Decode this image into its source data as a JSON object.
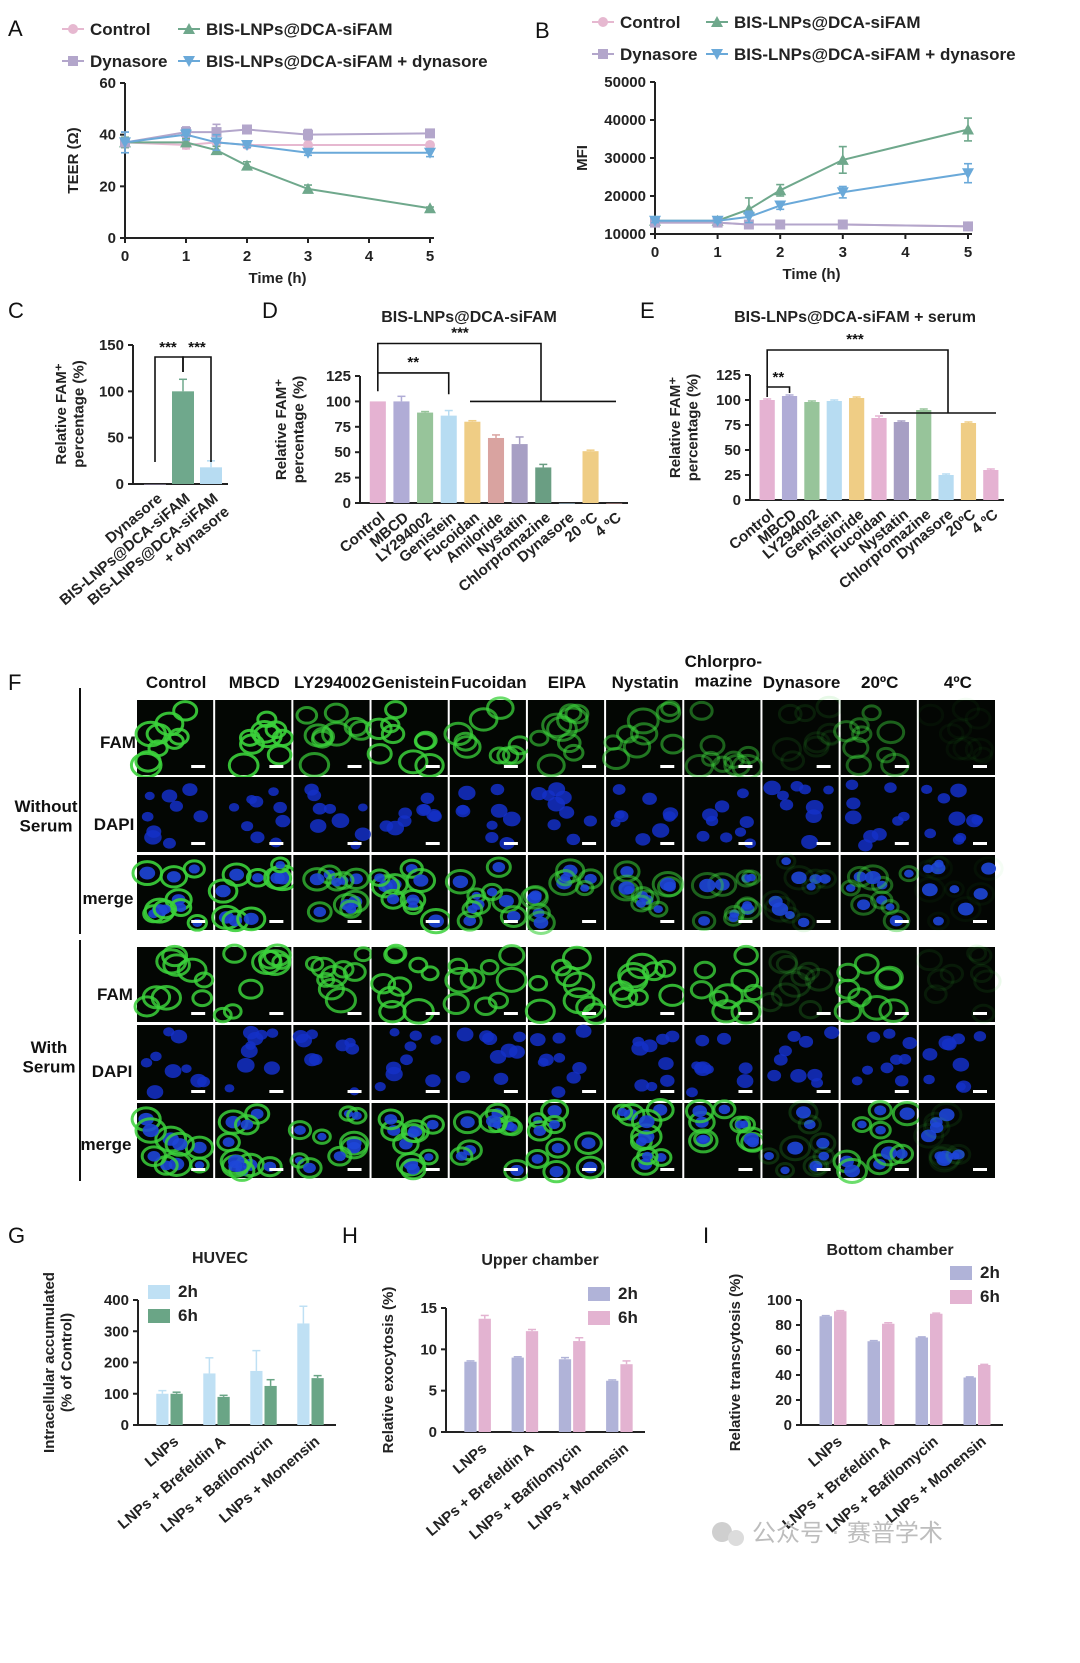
{
  "panels": {
    "A": {
      "letter": "A"
    },
    "B": {
      "letter": "B"
    },
    "C": {
      "letter": "C"
    },
    "D": {
      "letter": "D"
    },
    "E": {
      "letter": "E"
    },
    "F": {
      "letter": "F"
    },
    "G": {
      "letter": "G"
    },
    "H": {
      "letter": "H"
    },
    "I": {
      "letter": "I"
    }
  },
  "colors": {
    "control": "#e6b8d0",
    "bis": "#6fa88c",
    "dynasore": "#b3a6cb",
    "bis_dyn": "#6aa9d9",
    "pink": "#e5b2d2",
    "purple": "#b0acd6",
    "green": "#97c49a",
    "lightblue": "#b7dcf2",
    "yellow": "#efcd85",
    "salmon": "#d9a3a0",
    "mauve": "#a79fc4",
    "dgreen": "#6a9e83",
    "g_2h": "#bfe0f4",
    "g_6h": "#6aa586",
    "h_2h": "#b0b3d8",
    "h_6h": "#e3b3d1"
  },
  "legendAB": [
    "Control",
    "BIS-LNPs@DCA-siFAM",
    "Dynasore",
    "BIS-LNPs@DCA-siFAM + dynasore"
  ],
  "micrograph": {
    "columns": [
      "Control",
      "MBCD",
      "LY294002",
      "Genistein",
      "Fucoidan",
      "EIPA",
      "Nystatin",
      "Chlorpro-\nmazine",
      "Dynasore",
      "20ºC",
      "4ºC"
    ],
    "groups": [
      "Without\nSerum",
      "With\nSerum"
    ],
    "rows": [
      "FAM",
      "DAPI",
      "merge"
    ],
    "fam_intensity_without": [
      0.9,
      0.9,
      0.7,
      0.85,
      0.75,
      0.6,
      0.55,
      0.45,
      0.12,
      0.45,
      0.05
    ],
    "fam_intensity_with": [
      0.85,
      0.85,
      0.8,
      0.85,
      0.8,
      0.85,
      0.85,
      0.8,
      0.2,
      0.75,
      0.1
    ]
  },
  "watermark": "公众号 · 赛普学术",
  "chart_data": [
    {
      "panel": "A",
      "type": "line",
      "xlabel": "Time (h)",
      "ylabel": "TEER (Ω)",
      "xlim": [
        0,
        5
      ],
      "ylim": [
        0,
        60
      ],
      "xticks": [
        0,
        1,
        2,
        3,
        4,
        5
      ],
      "yticks": [
        0,
        20,
        40,
        60
      ],
      "legend": "top",
      "series": [
        {
          "name": "Control",
          "color": "control",
          "marker": "circle",
          "x": [
            0,
            1,
            1.5,
            2,
            3,
            5
          ],
          "y": [
            37,
            36,
            37,
            36,
            36,
            36
          ],
          "err": [
            2,
            1.5,
            1.5,
            1,
            1,
            1
          ]
        },
        {
          "name": "BIS-LNPs@DCA-siFAM",
          "color": "bis",
          "marker": "tri-up",
          "x": [
            0,
            1,
            1.5,
            2,
            3,
            5
          ],
          "y": [
            37,
            37,
            34,
            28,
            19,
            11.5
          ],
          "err": [
            2,
            1.5,
            1.5,
            1.5,
            1.5,
            0.5
          ]
        },
        {
          "name": "Dynasore",
          "color": "dynasore",
          "marker": "square",
          "x": [
            0,
            1,
            1.5,
            2,
            3,
            5
          ],
          "y": [
            37,
            41,
            41,
            42,
            40,
            40.5
          ],
          "err": [
            4,
            2,
            3,
            1.5,
            2,
            1
          ]
        },
        {
          "name": "BIS-LNPs@DCA-siFAM + dynasore",
          "color": "bis_dyn",
          "marker": "tri-down",
          "x": [
            0,
            1,
            1.5,
            2,
            3,
            5
          ],
          "y": [
            37,
            40,
            37,
            36,
            33,
            33
          ],
          "err": [
            4,
            2,
            3,
            1,
            1,
            1.5
          ]
        }
      ]
    },
    {
      "panel": "B",
      "type": "line",
      "xlabel": "Time (h)",
      "ylabel": "MFI",
      "xlim": [
        0,
        5
      ],
      "ylim": [
        10000,
        50000
      ],
      "xticks": [
        0,
        1,
        2,
        3,
        4,
        5
      ],
      "yticks": [
        10000,
        20000,
        30000,
        40000,
        50000
      ],
      "legend": "top",
      "series": [
        {
          "name": "Control",
          "color": "control",
          "marker": "circle",
          "x": [
            0,
            1,
            1.5,
            2,
            3,
            5
          ],
          "y": [
            13000,
            13000,
            12500,
            12500,
            12500,
            12000
          ],
          "err": [
            300,
            300,
            300,
            300,
            300,
            300
          ]
        },
        {
          "name": "BIS-LNPs@DCA-siFAM",
          "color": "bis",
          "marker": "tri-up",
          "x": [
            0,
            1,
            1.5,
            2,
            3,
            5
          ],
          "y": [
            13500,
            13500,
            16500,
            21500,
            29500,
            37500
          ],
          "err": [
            500,
            500,
            3000,
            1500,
            3500,
            3000
          ]
        },
        {
          "name": "Dynasore",
          "color": "dynasore",
          "marker": "square",
          "x": [
            0,
            1,
            1.5,
            2,
            3,
            5
          ],
          "y": [
            13000,
            13000,
            12500,
            12500,
            12500,
            12000
          ],
          "err": [
            300,
            300,
            300,
            300,
            300,
            300
          ]
        },
        {
          "name": "BIS-LNPs@DCA-siFAM + dynasore",
          "color": "bis_dyn",
          "marker": "tri-down",
          "x": [
            0,
            1,
            1.5,
            2,
            3,
            5
          ],
          "y": [
            13500,
            13500,
            14500,
            17500,
            21000,
            26000
          ],
          "err": [
            500,
            500,
            1500,
            1000,
            1500,
            2500
          ]
        }
      ]
    },
    {
      "panel": "C",
      "type": "bar",
      "ylabel": "Relative FAM⁺\npercentage (%)",
      "ylim": [
        0,
        150
      ],
      "yticks": [
        0,
        50,
        100,
        150
      ],
      "categories": [
        "Dynasore",
        "BIS-LNPs@DCA-siFAM",
        "BIS-LNPs@DCA-siFAM\n+ dynasore"
      ],
      "values": [
        0,
        100,
        18
      ],
      "err": [
        0,
        13,
        7
      ],
      "colors": [
        "dynasore",
        "bis",
        "lightblue"
      ],
      "significance": [
        {
          "from": 0,
          "to": 1,
          "label": "***"
        },
        {
          "from": 1,
          "to": 2,
          "label": "***"
        }
      ]
    },
    {
      "panel": "D",
      "type": "bar",
      "title": "BIS-LNPs@DCA-siFAM",
      "ylabel": "Relative FAM⁺\npercentage (%)",
      "ylim": [
        0,
        125
      ],
      "yticks": [
        0,
        25,
        50,
        75,
        100,
        125
      ],
      "categories": [
        "Control",
        "MBCD",
        "LY294002",
        "Genistein",
        "Fucoidan",
        "Amiloride",
        "Nystatin",
        "Chlorpromazine",
        "Dynasore",
        "20 ºC",
        "4 ºC"
      ],
      "values": [
        100,
        100,
        89,
        86,
        80,
        64,
        58,
        35,
        0,
        51,
        0
      ],
      "err": [
        0,
        5,
        1,
        5,
        1,
        3,
        7,
        3,
        0,
        1,
        0
      ],
      "colors": [
        "pink",
        "purple",
        "green",
        "lightblue",
        "yellow",
        "salmon",
        "mauve",
        "dgreen",
        "lightblue",
        "yellow",
        "salmon"
      ],
      "significance": [
        {
          "label": "**"
        },
        {
          "label": "***"
        }
      ]
    },
    {
      "panel": "E",
      "type": "bar",
      "title": "BIS-LNPs@DCA-siFAM + serum",
      "ylabel": "Relative FAM⁺\npercentage (%)",
      "ylim": [
        0,
        125
      ],
      "yticks": [
        0,
        25,
        50,
        75,
        100,
        125
      ],
      "categories": [
        "Control",
        "MBCD",
        "LY294002",
        "Genistein",
        "Amiloride",
        "Fucoidan",
        "Nystatin",
        "Chlorpromazine",
        "Dynasore",
        "20ºC",
        "4 ºC"
      ],
      "values": [
        100,
        104,
        98,
        99,
        102,
        82,
        78,
        90,
        25,
        77,
        30
      ],
      "err": [
        1,
        1,
        1,
        1,
        1,
        2,
        1,
        1,
        1,
        1,
        1
      ],
      "colors": [
        "pink",
        "purple",
        "green",
        "lightblue",
        "yellow",
        "pink",
        "mauve",
        "green",
        "lightblue",
        "yellow",
        "pink"
      ],
      "significance": [
        {
          "label": "**"
        },
        {
          "label": "***"
        }
      ]
    },
    {
      "panel": "G",
      "type": "bar",
      "title": "HUVEC",
      "ylabel": "Intracellular accumulated\n(% of Control)",
      "ylim": [
        0,
        400
      ],
      "yticks": [
        0,
        100,
        200,
        300,
        400
      ],
      "categories": [
        "LNPs",
        "LNPs + Brefeldin A",
        "LNPs + Bafilomycin",
        "LNPs + Monensin"
      ],
      "legend": "top-right",
      "series": [
        {
          "name": "2h",
          "color": "g_2h",
          "values": [
            100,
            165,
            173,
            325
          ],
          "err": [
            10,
            50,
            65,
            55
          ]
        },
        {
          "name": "6h",
          "color": "g_6h",
          "values": [
            100,
            90,
            125,
            150
          ],
          "err": [
            5,
            5,
            20,
            8
          ]
        }
      ]
    },
    {
      "panel": "H",
      "type": "bar",
      "title": "Upper chamber",
      "ylabel": "Relative exocytosis (%)",
      "ylim": [
        0,
        15
      ],
      "yticks": [
        0,
        5,
        10,
        15
      ],
      "categories": [
        "LNPs",
        "LNPs + Brefeldin A",
        "LNPs + Bafilomycin",
        "LNPs + Monensin"
      ],
      "legend": "top-right",
      "series": [
        {
          "name": "2h",
          "color": "h_2h",
          "values": [
            8.5,
            9.0,
            8.8,
            6.2
          ],
          "err": [
            0.1,
            0.1,
            0.2,
            0.1
          ]
        },
        {
          "name": "6h",
          "color": "h_6h",
          "values": [
            13.7,
            12.2,
            11.0,
            8.2
          ],
          "err": [
            0.4,
            0.2,
            0.4,
            0.4
          ]
        }
      ]
    },
    {
      "panel": "I",
      "type": "bar",
      "title": "Bottom chamber",
      "ylabel": "Relative transcytosis (%)",
      "ylim": [
        0,
        100
      ],
      "yticks": [
        0,
        20,
        40,
        60,
        80,
        100
      ],
      "categories": [
        "LNPs",
        "LNPs + Brefeldin A",
        "LNPs + Bafilomycin",
        "LNPs + Monensin"
      ],
      "legend": "top-right",
      "series": [
        {
          "name": "2h",
          "color": "h_2h",
          "values": [
            87,
            67,
            70,
            38
          ],
          "err": [
            0.5,
            0.5,
            0.5,
            0.5
          ]
        },
        {
          "name": "6h",
          "color": "h_6h",
          "values": [
            91,
            81,
            89,
            48
          ],
          "err": [
            0.5,
            0.8,
            0.5,
            0.5
          ]
        }
      ]
    }
  ]
}
